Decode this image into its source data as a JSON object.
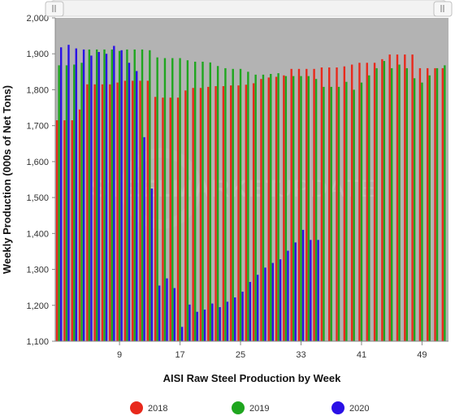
{
  "watermark": {
    "word1": "STEEL",
    "word2": "MARKET",
    "word3": "UPDATE"
  },
  "colors": {
    "plot_background": "#b3b3b3",
    "series_2018": "#e8291c",
    "series_2019": "#1fa61f",
    "series_2020": "#2a10e6",
    "navigator": "#f2f2f2"
  },
  "chart_data": {
    "type": "bar",
    "title": "",
    "xlabel": "AISI Raw Steel Production by Week",
    "ylabel": "Weekly Production (000s of Net Tons)",
    "ylim": [
      1100,
      2000
    ],
    "yticks": [
      1100,
      1200,
      1300,
      1400,
      1500,
      1600,
      1700,
      1800,
      1900,
      2000
    ],
    "ytick_labels": [
      "1,100",
      "1,200",
      "1,300",
      "1,400",
      "1,500",
      "1,600",
      "1,700",
      "1,800",
      "1,900",
      "2,000"
    ],
    "xlim": [
      0.5,
      52.5
    ],
    "xticks": [
      9,
      17,
      25,
      33,
      41,
      49
    ],
    "grid": false,
    "legend_position": "bottom",
    "series": [
      {
        "name": "2018",
        "color": "#e8291c",
        "x": [
          1,
          2,
          3,
          4,
          5,
          6,
          7,
          8,
          9,
          10,
          11,
          12,
          13,
          14,
          15,
          16,
          17,
          18,
          19,
          20,
          21,
          22,
          23,
          24,
          25,
          26,
          27,
          28,
          29,
          30,
          31,
          32,
          33,
          34,
          35,
          36,
          37,
          38,
          39,
          40,
          41,
          42,
          43,
          44,
          45,
          46,
          47,
          48,
          49,
          50,
          51,
          52
        ],
        "values": [
          1715,
          1715,
          1715,
          1745,
          1815,
          1815,
          1815,
          1815,
          1820,
          1825,
          1825,
          1825,
          1825,
          1780,
          1778,
          1778,
          1778,
          1798,
          1805,
          1805,
          1808,
          1810,
          1810,
          1812,
          1812,
          1814,
          1818,
          1830,
          1834,
          1836,
          1840,
          1858,
          1858,
          1858,
          1858,
          1862,
          1862,
          1862,
          1865,
          1870,
          1875,
          1875,
          1875,
          1885,
          1898,
          1898,
          1898,
          1898,
          1860,
          1860,
          1860,
          1860
        ]
      },
      {
        "name": "2019",
        "color": "#1fa61f",
        "x": [
          1,
          2,
          3,
          4,
          5,
          6,
          7,
          8,
          9,
          10,
          11,
          12,
          13,
          14,
          15,
          16,
          17,
          18,
          19,
          20,
          21,
          22,
          23,
          24,
          25,
          26,
          27,
          28,
          29,
          30,
          31,
          32,
          33,
          34,
          35,
          36,
          37,
          38,
          39,
          40,
          41,
          42,
          43,
          44,
          45,
          46,
          47,
          48,
          49,
          50,
          51,
          52
        ],
        "values": [
          1868,
          1868,
          1870,
          1875,
          1912,
          1912,
          1912,
          1912,
          1908,
          1912,
          1912,
          1912,
          1910,
          1890,
          1888,
          1888,
          1888,
          1882,
          1878,
          1878,
          1876,
          1866,
          1860,
          1858,
          1858,
          1850,
          1842,
          1842,
          1844,
          1846,
          1838,
          1838,
          1838,
          1838,
          1830,
          1808,
          1808,
          1808,
          1822,
          1800,
          1820,
          1840,
          1860,
          1880,
          1860,
          1870,
          1860,
          1832,
          1820,
          1840,
          1860,
          1868
        ]
      },
      {
        "name": "2020",
        "color": "#2a10e6",
        "x": [
          1,
          2,
          3,
          4,
          5,
          6,
          7,
          8,
          9,
          10,
          11,
          12,
          13,
          14,
          15,
          16,
          17,
          18,
          19,
          20,
          21,
          22,
          23,
          24,
          25,
          26,
          27,
          28,
          29,
          30,
          31,
          32,
          33,
          34,
          35
        ],
        "values": [
          1918,
          1925,
          1915,
          1912,
          1895,
          1905,
          1900,
          1922,
          1910,
          1875,
          1852,
          1668,
          1525,
          1255,
          1275,
          1248,
          1140,
          1202,
          1182,
          1188,
          1205,
          1195,
          1210,
          1222,
          1238,
          1265,
          1285,
          1305,
          1318,
          1328,
          1352,
          1375,
          1410,
          1382,
          1382
        ]
      }
    ]
  }
}
